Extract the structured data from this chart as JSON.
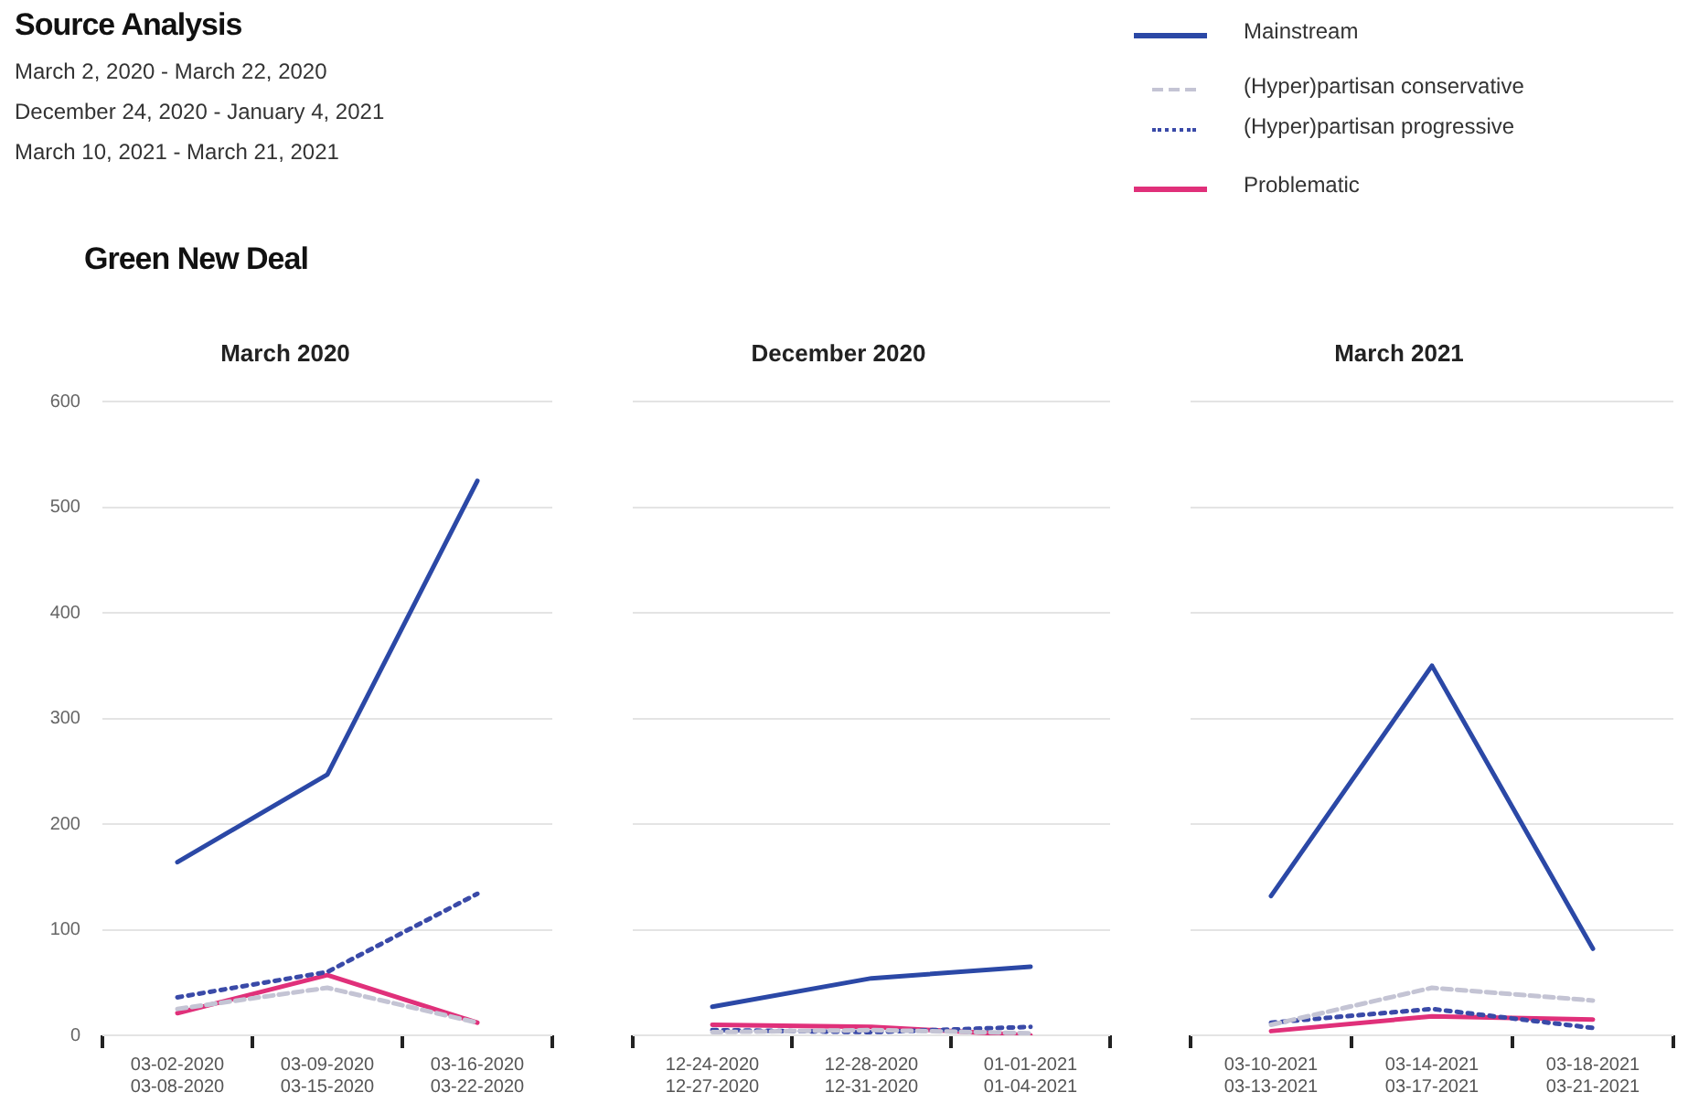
{
  "chart_data": [
    {
      "type": "line",
      "title": "March 2020",
      "annotations": [
        "Source Analysis",
        "March 2, 2020 - March 22, 2020",
        "December 24, 2020 - January 4, 2021",
        "March 10, 2021 - March 21, 2021",
        "Green New Deal"
      ],
      "categories": [
        "03-02-2020\n03-08-2020",
        "03-09-2020\n03-15-2020",
        "03-16-2020\n03-22-2020"
      ],
      "series": [
        {
          "name": "Mainstream",
          "color": "#2b48a6",
          "line_style": "solid",
          "values": [
            164,
            247,
            525
          ]
        },
        {
          "name": "(Hyper)partisan conservative",
          "color": "#c4c4d4",
          "line_style": "dashed",
          "values": [
            25,
            45,
            12
          ]
        },
        {
          "name": "(Hyper)partisan progressive",
          "color": "#3a4aa8",
          "line_style": "dotted",
          "values": [
            36,
            60,
            134
          ]
        },
        {
          "name": "Problematic",
          "color": "#e0307a",
          "line_style": "solid",
          "values": [
            21,
            57,
            12
          ]
        }
      ],
      "ylim": [
        0,
        600
      ],
      "yticks": [
        0,
        100,
        200,
        300,
        400,
        500,
        600
      ],
      "grid": "y",
      "legend": "top right",
      "marker": "none"
    },
    {
      "type": "line",
      "title": "December 2020",
      "categories": [
        "12-24-2020\n12-27-2020",
        "12-28-2020\n12-31-2020",
        "01-01-2021\n01-04-2021"
      ],
      "series": [
        {
          "color": "#2b48a6",
          "line_style": "solid",
          "values": [
            27,
            54,
            65
          ]
        },
        {
          "color": "#c4c4d4",
          "line_style": "dashed",
          "values": [
            3,
            5,
            2
          ]
        },
        {
          "color": "#3a4aa8",
          "line_style": "dotted",
          "values": [
            5,
            3,
            8
          ]
        },
        {
          "color": "#e0307a",
          "line_style": "solid",
          "values": [
            10,
            8,
            0
          ]
        }
      ],
      "ylim": [
        0,
        600
      ],
      "yticks": [
        0,
        100,
        200,
        300,
        400,
        500,
        600
      ],
      "grid": "y",
      "tick_labels": "x",
      "marker": "none"
    },
    {
      "type": "line",
      "title": "March 2021",
      "categories": [
        "03-10-2021\n03-13-2021",
        "03-14-2021\n03-17-2021",
        "03-18-2021\n03-21-2021"
      ],
      "series": [
        {
          "color": "#2b48a6",
          "line_style": "solid",
          "values": [
            132,
            350,
            82
          ]
        },
        {
          "color": "#c4c4d4",
          "line_style": "dashed",
          "values": [
            10,
            45,
            33
          ]
        },
        {
          "color": "#3a4aa8",
          "line_style": "dotted",
          "values": [
            12,
            25,
            7
          ]
        },
        {
          "color": "#e0307a",
          "line_style": "solid",
          "values": [
            4,
            18,
            15
          ]
        }
      ],
      "ylim": [
        0,
        600
      ],
      "yticks": [
        0,
        100,
        200,
        300,
        400,
        500,
        600
      ],
      "grid": "y",
      "tick_labels": "x",
      "marker": "none"
    }
  ]
}
